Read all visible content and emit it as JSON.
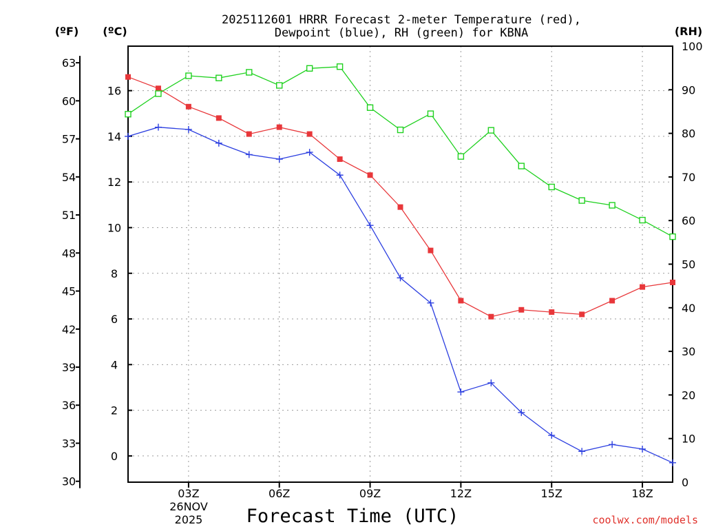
{
  "chart_data": {
    "type": "line",
    "title_line1": "2025112601 HRRR Forecast 2-meter Temperature (red),",
    "title_line2": "Dewpoint (blue), RH (green) for KBNA",
    "units": {
      "fahrenheit": "(ºF)",
      "celsius": "(ºC)",
      "rh": "(RH)"
    },
    "xlabel": "Forecast Time (UTC)",
    "credit": "coolwx.com/models",
    "date_label": [
      "26NOV",
      "2025"
    ],
    "x_hours": [
      1,
      2,
      3,
      4,
      5,
      6,
      7,
      8,
      9,
      10,
      11,
      12,
      13,
      14,
      15,
      16,
      17,
      18,
      19
    ],
    "xlim": [
      1,
      19
    ],
    "x_ticks": [
      {
        "hour": 3,
        "label": "03Z"
      },
      {
        "hour": 6,
        "label": "06Z"
      },
      {
        "hour": 9,
        "label": "09Z"
      },
      {
        "hour": 12,
        "label": "12Z"
      },
      {
        "hour": 15,
        "label": "15Z"
      },
      {
        "hour": 18,
        "label": "18Z"
      }
    ],
    "celsius_axis": {
      "ylim": [
        -1.15,
        17.95
      ],
      "ticks": [
        "0",
        "2",
        "4",
        "6",
        "8",
        "10",
        "12",
        "14",
        "16"
      ]
    },
    "fahrenheit_ticks": [
      "30",
      "33",
      "36",
      "39",
      "42",
      "45",
      "48",
      "51",
      "54",
      "57",
      "60",
      "63"
    ],
    "rh_axis": {
      "ylim": [
        0,
        100
      ],
      "ticks": [
        "0",
        "10",
        "20",
        "30",
        "40",
        "50",
        "60",
        "70",
        "80",
        "90",
        "100"
      ]
    },
    "series": [
      {
        "name": "Temperature",
        "axis": "celsius",
        "color": "#e8373a",
        "marker": "filled-square",
        "values": [
          16.6,
          16.1,
          15.3,
          14.8,
          14.1,
          14.4,
          14.1,
          13.0,
          12.3,
          10.9,
          9.0,
          6.8,
          6.1,
          6.4,
          6.3,
          6.2,
          6.8,
          7.4,
          7.6
        ]
      },
      {
        "name": "Dewpoint",
        "axis": "celsius",
        "color": "#2b3ee0",
        "marker": "plus",
        "values": [
          14.0,
          14.4,
          14.3,
          13.7,
          13.2,
          13.0,
          13.3,
          12.3,
          10.1,
          7.8,
          6.7,
          2.8,
          3.2,
          1.9,
          0.9,
          0.2,
          0.5,
          0.3,
          -0.3
        ]
      },
      {
        "name": "RH",
        "axis": "rh",
        "color": "#1fd11f",
        "marker": "open-square",
        "values": [
          84.4,
          89.1,
          93.2,
          92.7,
          94.0,
          91.0,
          94.9,
          95.3,
          85.9,
          80.8,
          84.5,
          74.7,
          80.7,
          72.5,
          67.7,
          64.6,
          63.5,
          60.1,
          56.3
        ]
      }
    ]
  }
}
